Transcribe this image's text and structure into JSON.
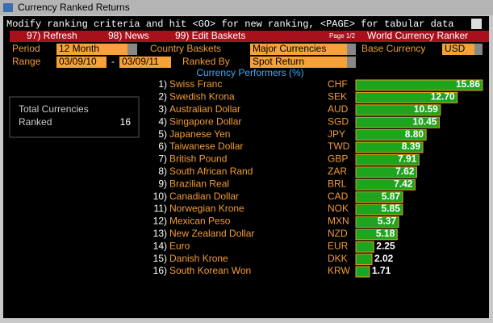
{
  "window": {
    "title": "Currency Ranked Returns"
  },
  "header": {
    "instruction": "Modify ranking criteria and hit <GO> for new ranking, <PAGE> for tabular data",
    "menu": [
      "97) Refresh",
      "98) News",
      "99) Edit Baskets"
    ],
    "page": "Page 1/2",
    "screen_title": "World Currency Ranker"
  },
  "controls": {
    "period_label": "Period",
    "period": "12 Month",
    "baskets_label": "Country Baskets",
    "baskets": "Major Currencies",
    "base_label": "Base Currency",
    "base": "USD",
    "range_label": "Range",
    "range_start": "03/09/10",
    "range_sep": "-",
    "range_end": "03/09/11",
    "ranked_by_label": "Ranked By",
    "ranked_by": "Spot Return"
  },
  "summary": {
    "label_1": "Total Currencies",
    "label_2": "Ranked",
    "value": 16
  },
  "chart_data": {
    "type": "bar",
    "title": "Currency Performers (%)",
    "ranks": [
      "1)",
      "2)",
      "3)",
      "4)",
      "5)",
      "6)",
      "7)",
      "8)",
      "9)",
      "10)",
      "11)",
      "12)",
      "13)",
      "14)",
      "15)",
      "16)"
    ],
    "categories": [
      "Swiss Franc",
      "Swedish Krona",
      "Australian Dollar",
      "Singapore Dollar",
      "Japanese Yen",
      "Taiwanese Dollar",
      "British Pound",
      "South African Rand",
      "Brazilian Real",
      "Canadian Dollar",
      "Norwegian Krone",
      "Mexican Peso",
      "New Zealand Dollar",
      "Euro",
      "Danish Krone",
      "South Korean Won"
    ],
    "codes": [
      "CHF",
      "SEK",
      "AUD",
      "SGD",
      "JPY",
      "TWD",
      "GBP",
      "ZAR",
      "BRL",
      "CAD",
      "NOK",
      "MXN",
      "NZD",
      "EUR",
      "DKK",
      "KRW"
    ],
    "values": [
      15.86,
      12.7,
      10.59,
      10.45,
      8.8,
      8.39,
      7.91,
      7.62,
      7.42,
      5.87,
      5.85,
      5.37,
      5.18,
      2.25,
      2.02,
      1.71
    ],
    "value_labels": [
      "15.86",
      "12.70",
      "10.59",
      "10.45",
      "8.80",
      "8.39",
      "7.91",
      "7.62",
      "7.42",
      "5.87",
      "5.85",
      "5.37",
      "5.18",
      "2.25",
      "2.02",
      "1.71"
    ],
    "color": "#1ea51e"
  }
}
